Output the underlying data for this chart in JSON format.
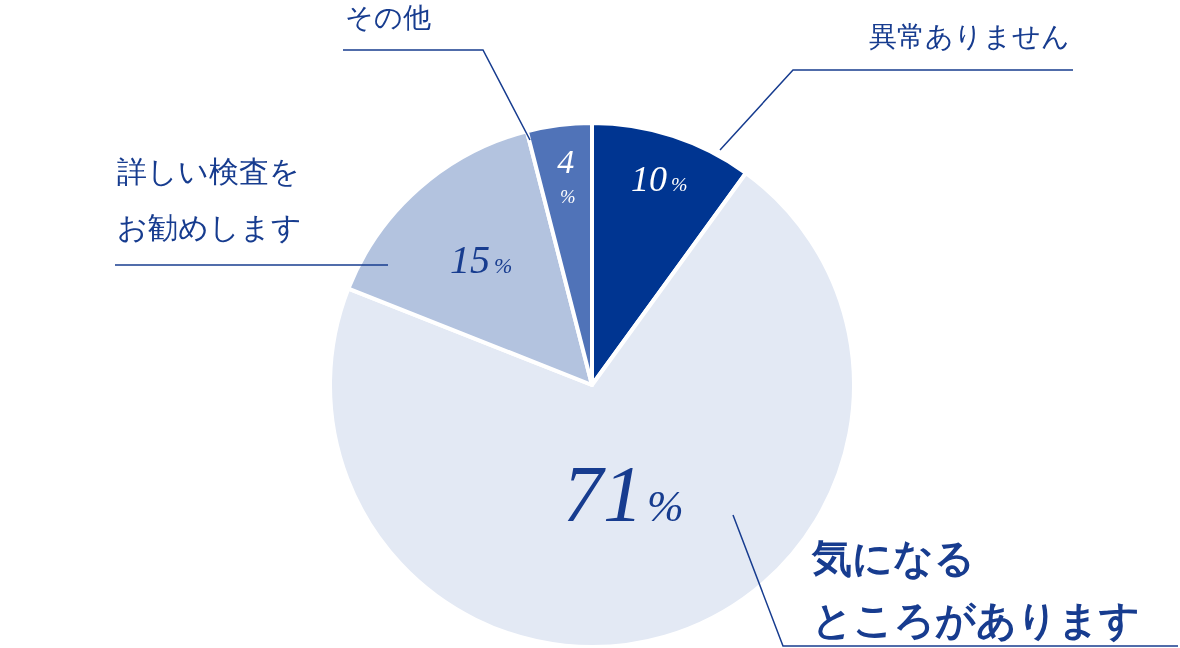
{
  "chart_data": {
    "type": "pie",
    "categories": [
      "異常ありません",
      "気になるところがあります",
      "詳しい検査をお勧めします",
      "その他"
    ],
    "values": [
      10,
      71,
      15,
      4
    ],
    "colors": [
      "#003591",
      "#e3e9f4",
      "#b3c3df",
      "#5073b8"
    ],
    "value_labels": [
      "10%",
      "71%",
      "15%",
      "4%"
    ]
  }
}
